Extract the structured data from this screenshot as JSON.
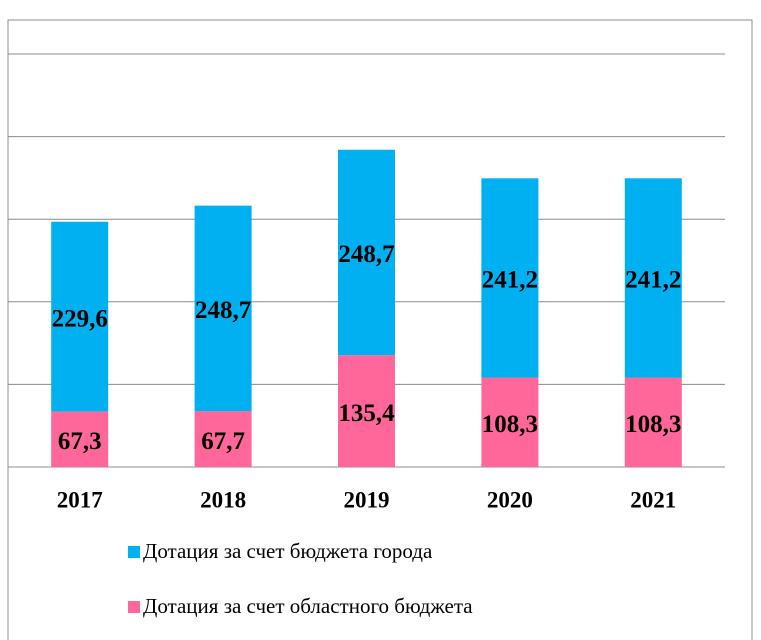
{
  "chart_data": {
    "type": "bar",
    "stacked": true,
    "categories": [
      "2017",
      "2018",
      "2019",
      "2020",
      "2021"
    ],
    "series": [
      {
        "name": "Дотация за счет бюджета города",
        "color": "#00b0f0",
        "values": [
          229.6,
          248.7,
          248.7,
          241.2,
          241.2
        ],
        "value_labels": [
          "229,6",
          "248,7",
          "248,7",
          "241,2",
          "241,2"
        ]
      },
      {
        "name": "Дотация за счет областного бюджета",
        "color": "#ff6699",
        "values": [
          67.3,
          67.7,
          135.4,
          108.3,
          108.3
        ],
        "value_labels": [
          "67,3",
          "67,7",
          "135,4",
          "108,3",
          "108,3"
        ]
      }
    ],
    "ylim": [
      0,
      500
    ],
    "yticks": [
      0,
      100,
      200,
      300,
      400,
      500
    ],
    "grid": true
  }
}
